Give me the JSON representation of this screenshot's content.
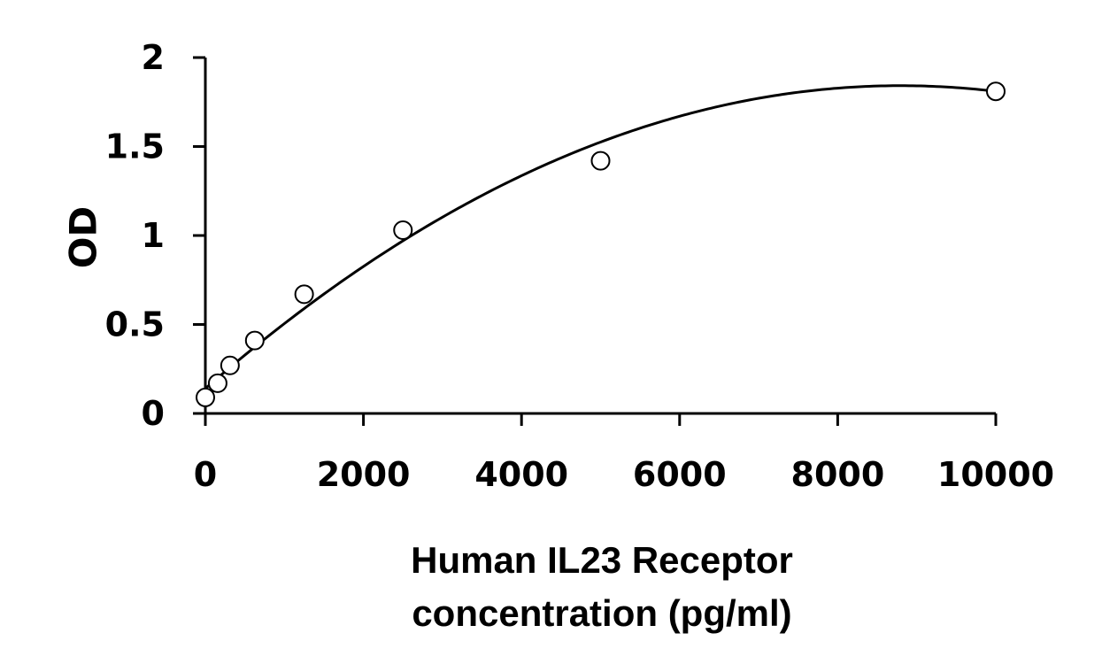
{
  "chart_data": {
    "type": "scatter",
    "title": "",
    "xlabel_lines": [
      "Human IL23 Receptor",
      "concentration (pg/ml)"
    ],
    "ylabel": "OD",
    "xlim": [
      0,
      10000
    ],
    "ylim": [
      0,
      2
    ],
    "x_ticks": [
      0,
      2000,
      4000,
      6000,
      8000,
      10000
    ],
    "x_tick_labels": [
      "0",
      "2000",
      "4000",
      "6000",
      "8000",
      "10000"
    ],
    "y_ticks": [
      0,
      0.5,
      1,
      1.5,
      2
    ],
    "y_tick_labels": [
      "0",
      "0.5",
      "1",
      "1.5",
      "2"
    ],
    "grid": false,
    "legend": "none",
    "series": [
      {
        "marker": "open-circle",
        "x": [
          0,
          156,
          312,
          625,
          1250,
          2500,
          5000,
          10000
        ],
        "y": [
          0.09,
          0.17,
          0.27,
          0.41,
          0.67,
          1.03,
          1.42,
          1.81
        ]
      }
    ],
    "fit_curve": {
      "type": "polynomial-2",
      "coefficients": [
        0.14,
        0.000387,
        -2.2e-08
      ]
    },
    "colors": {
      "marker_stroke": "#000000",
      "marker_fill": "#ffffff",
      "curve": "#000000"
    }
  }
}
